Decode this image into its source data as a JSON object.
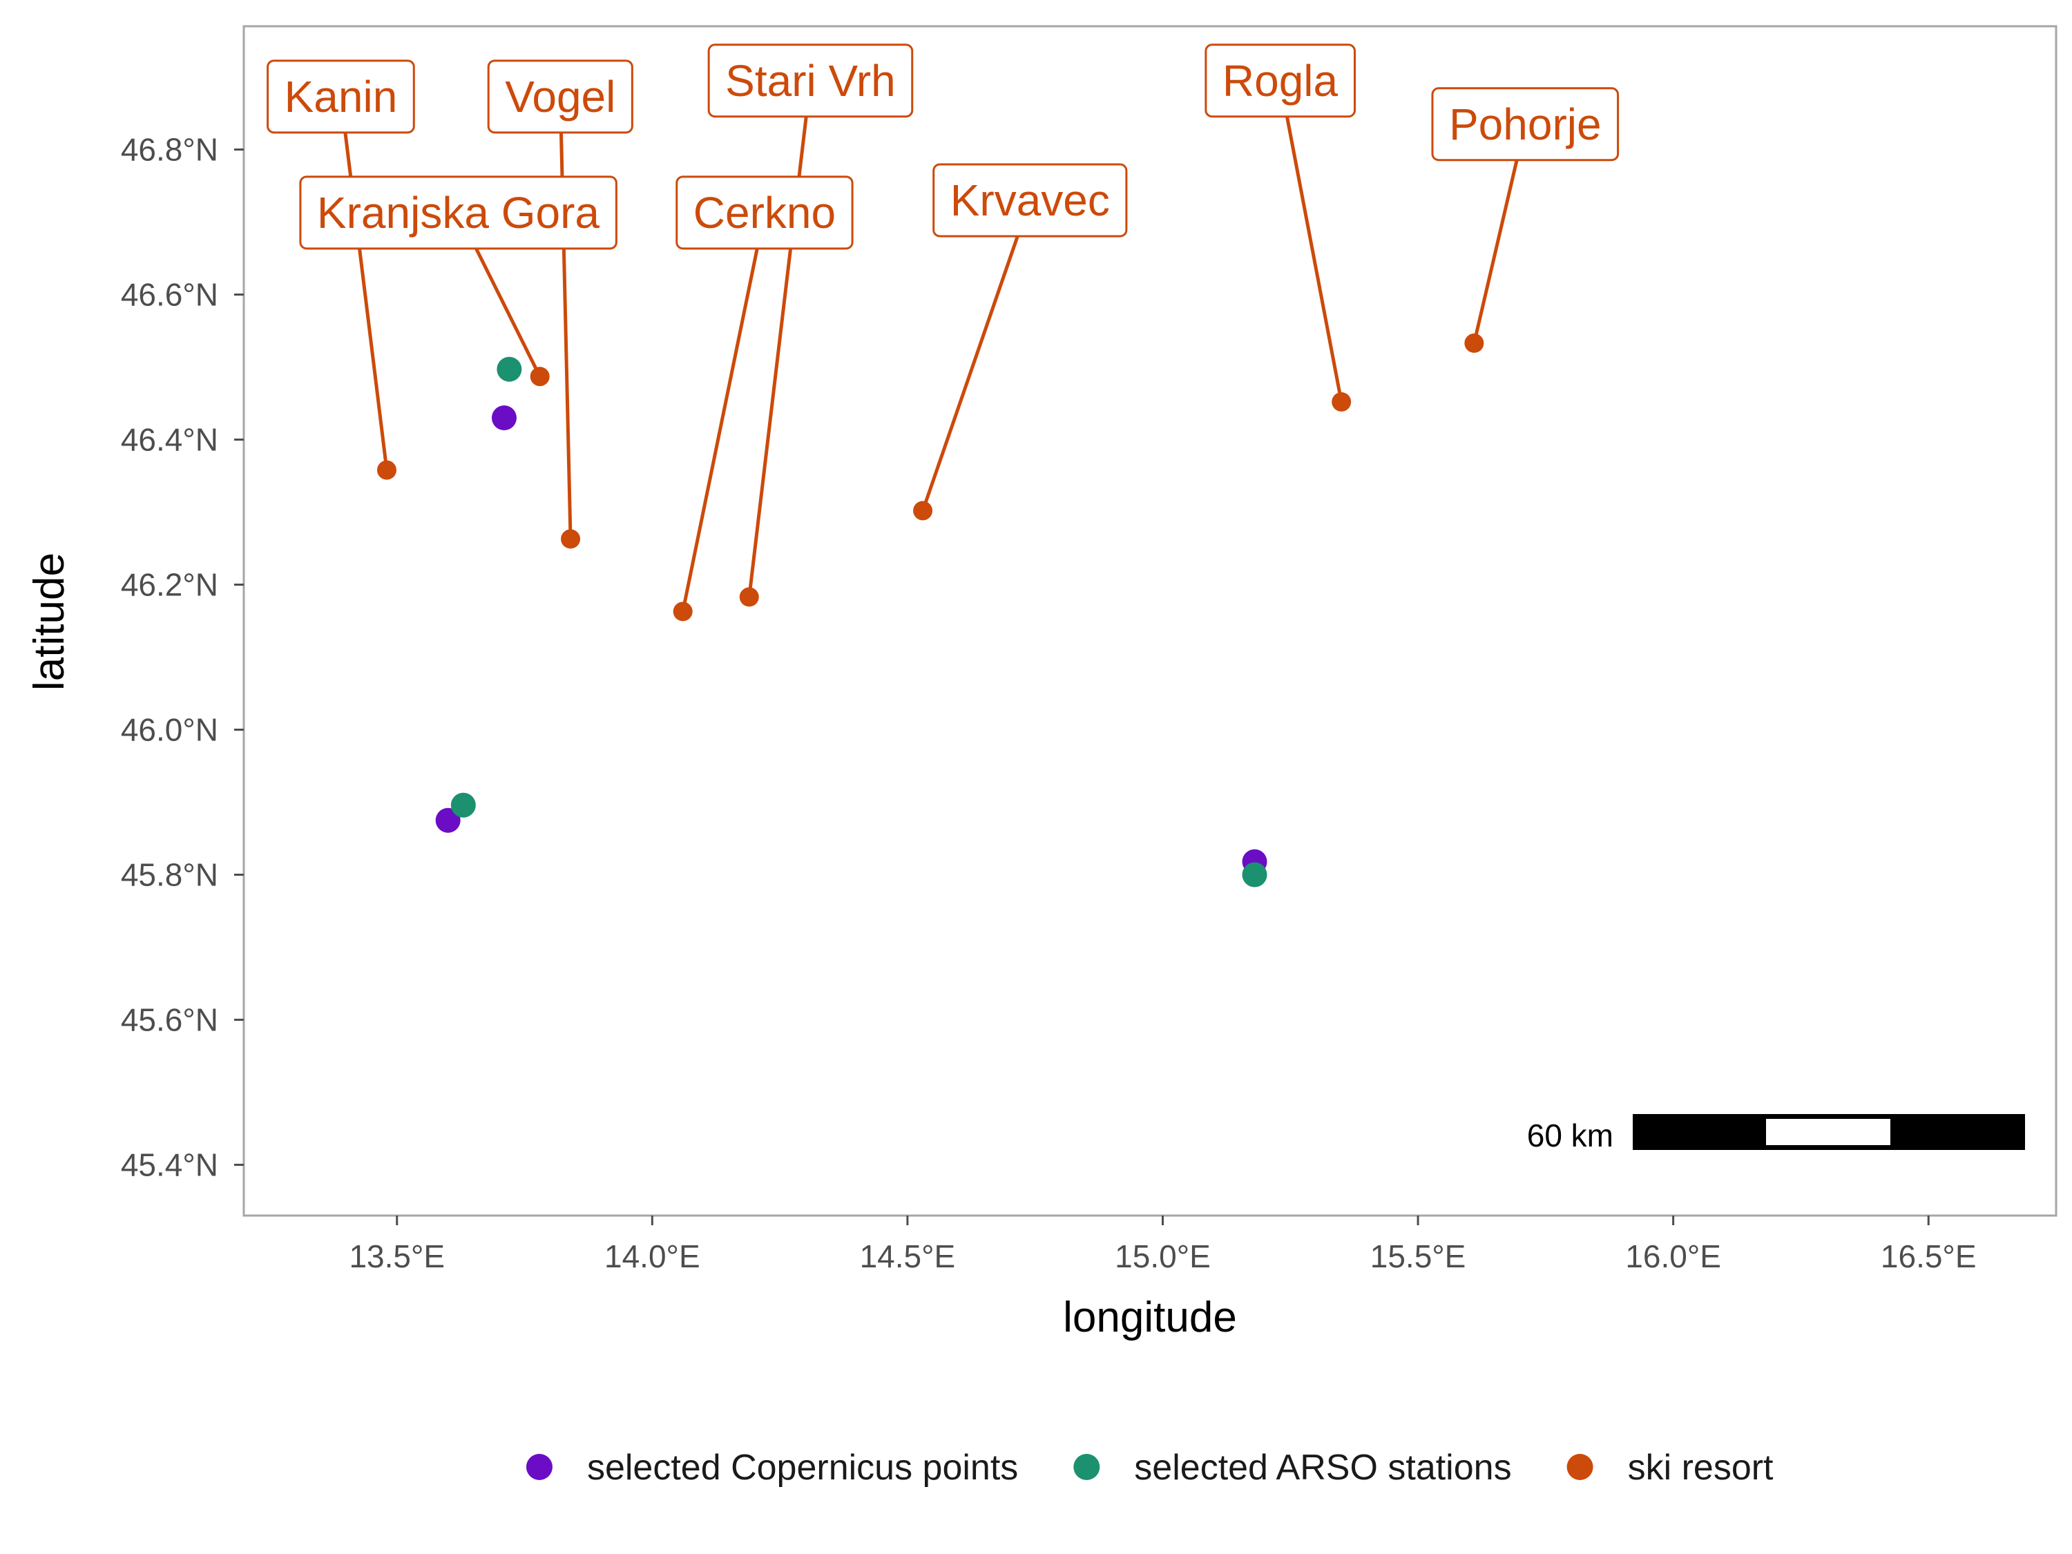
{
  "map": {
    "x_axis": {
      "title": "longitude",
      "range": [
        13.2,
        16.75
      ],
      "ticks": [
        13.5,
        14.0,
        14.5,
        15.0,
        15.5,
        16.0,
        16.5
      ],
      "tick_labels": [
        "13.5°E",
        "14.0°E",
        "14.5°E",
        "15.0°E",
        "15.5°E",
        "16.0°E",
        "16.5°E"
      ]
    },
    "y_axis": {
      "title": "latitude",
      "range": [
        45.33,
        46.97
      ],
      "ticks": [
        45.4,
        45.6,
        45.8,
        46.0,
        46.2,
        46.4,
        46.6,
        46.8
      ],
      "tick_labels": [
        "45.4°N",
        "45.6°N",
        "45.8°N",
        "46.0°N",
        "46.2°N",
        "46.4°N",
        "46.6°N",
        "46.8°N"
      ]
    },
    "grid": false,
    "legend_position": "bottom",
    "layers": [
      {
        "name": "selected Copernicus points",
        "color": "#6a0dc5",
        "points": [
          {
            "lon": 13.71,
            "lat": 46.43
          },
          {
            "lon": 13.6,
            "lat": 45.875
          },
          {
            "lon": 15.18,
            "lat": 45.818
          }
        ]
      },
      {
        "name": "selected ARSO stations",
        "color": "#1b9170",
        "points": [
          {
            "lon": 13.72,
            "lat": 46.497
          },
          {
            "lon": 13.63,
            "lat": 45.896
          },
          {
            "lon": 15.18,
            "lat": 45.8
          }
        ]
      },
      {
        "name": "ski resort",
        "color": "#cc4a0a",
        "points": [
          {
            "label": "Kanin",
            "lon": 13.48,
            "lat": 46.358,
            "label_lon": 13.39,
            "label_lat": 46.873
          },
          {
            "label": "Vogel",
            "lon": 13.84,
            "lat": 46.263,
            "label_lon": 13.82,
            "label_lat": 46.873
          },
          {
            "label": "Stari Vrh",
            "lon": 14.19,
            "lat": 46.183,
            "label_lon": 14.31,
            "label_lat": 46.895
          },
          {
            "label": "Rogla",
            "lon": 15.35,
            "lat": 46.452,
            "label_lon": 15.23,
            "label_lat": 46.895
          },
          {
            "label": "Pohorje",
            "lon": 15.61,
            "lat": 46.533,
            "label_lon": 15.71,
            "label_lat": 46.835
          },
          {
            "label": "Kranjska Gora",
            "lon": 13.78,
            "lat": 46.487,
            "label_lon": 13.62,
            "label_lat": 46.713
          },
          {
            "label": "Cerkno",
            "lon": 14.06,
            "lat": 46.163,
            "label_lon": 14.22,
            "label_lat": 46.713
          },
          {
            "label": "Krvavec",
            "lon": 14.53,
            "lat": 46.302,
            "label_lon": 14.74,
            "label_lat": 46.73
          }
        ]
      }
    ],
    "scale_bar": {
      "label": "60 km",
      "position": "bottom-right"
    }
  }
}
